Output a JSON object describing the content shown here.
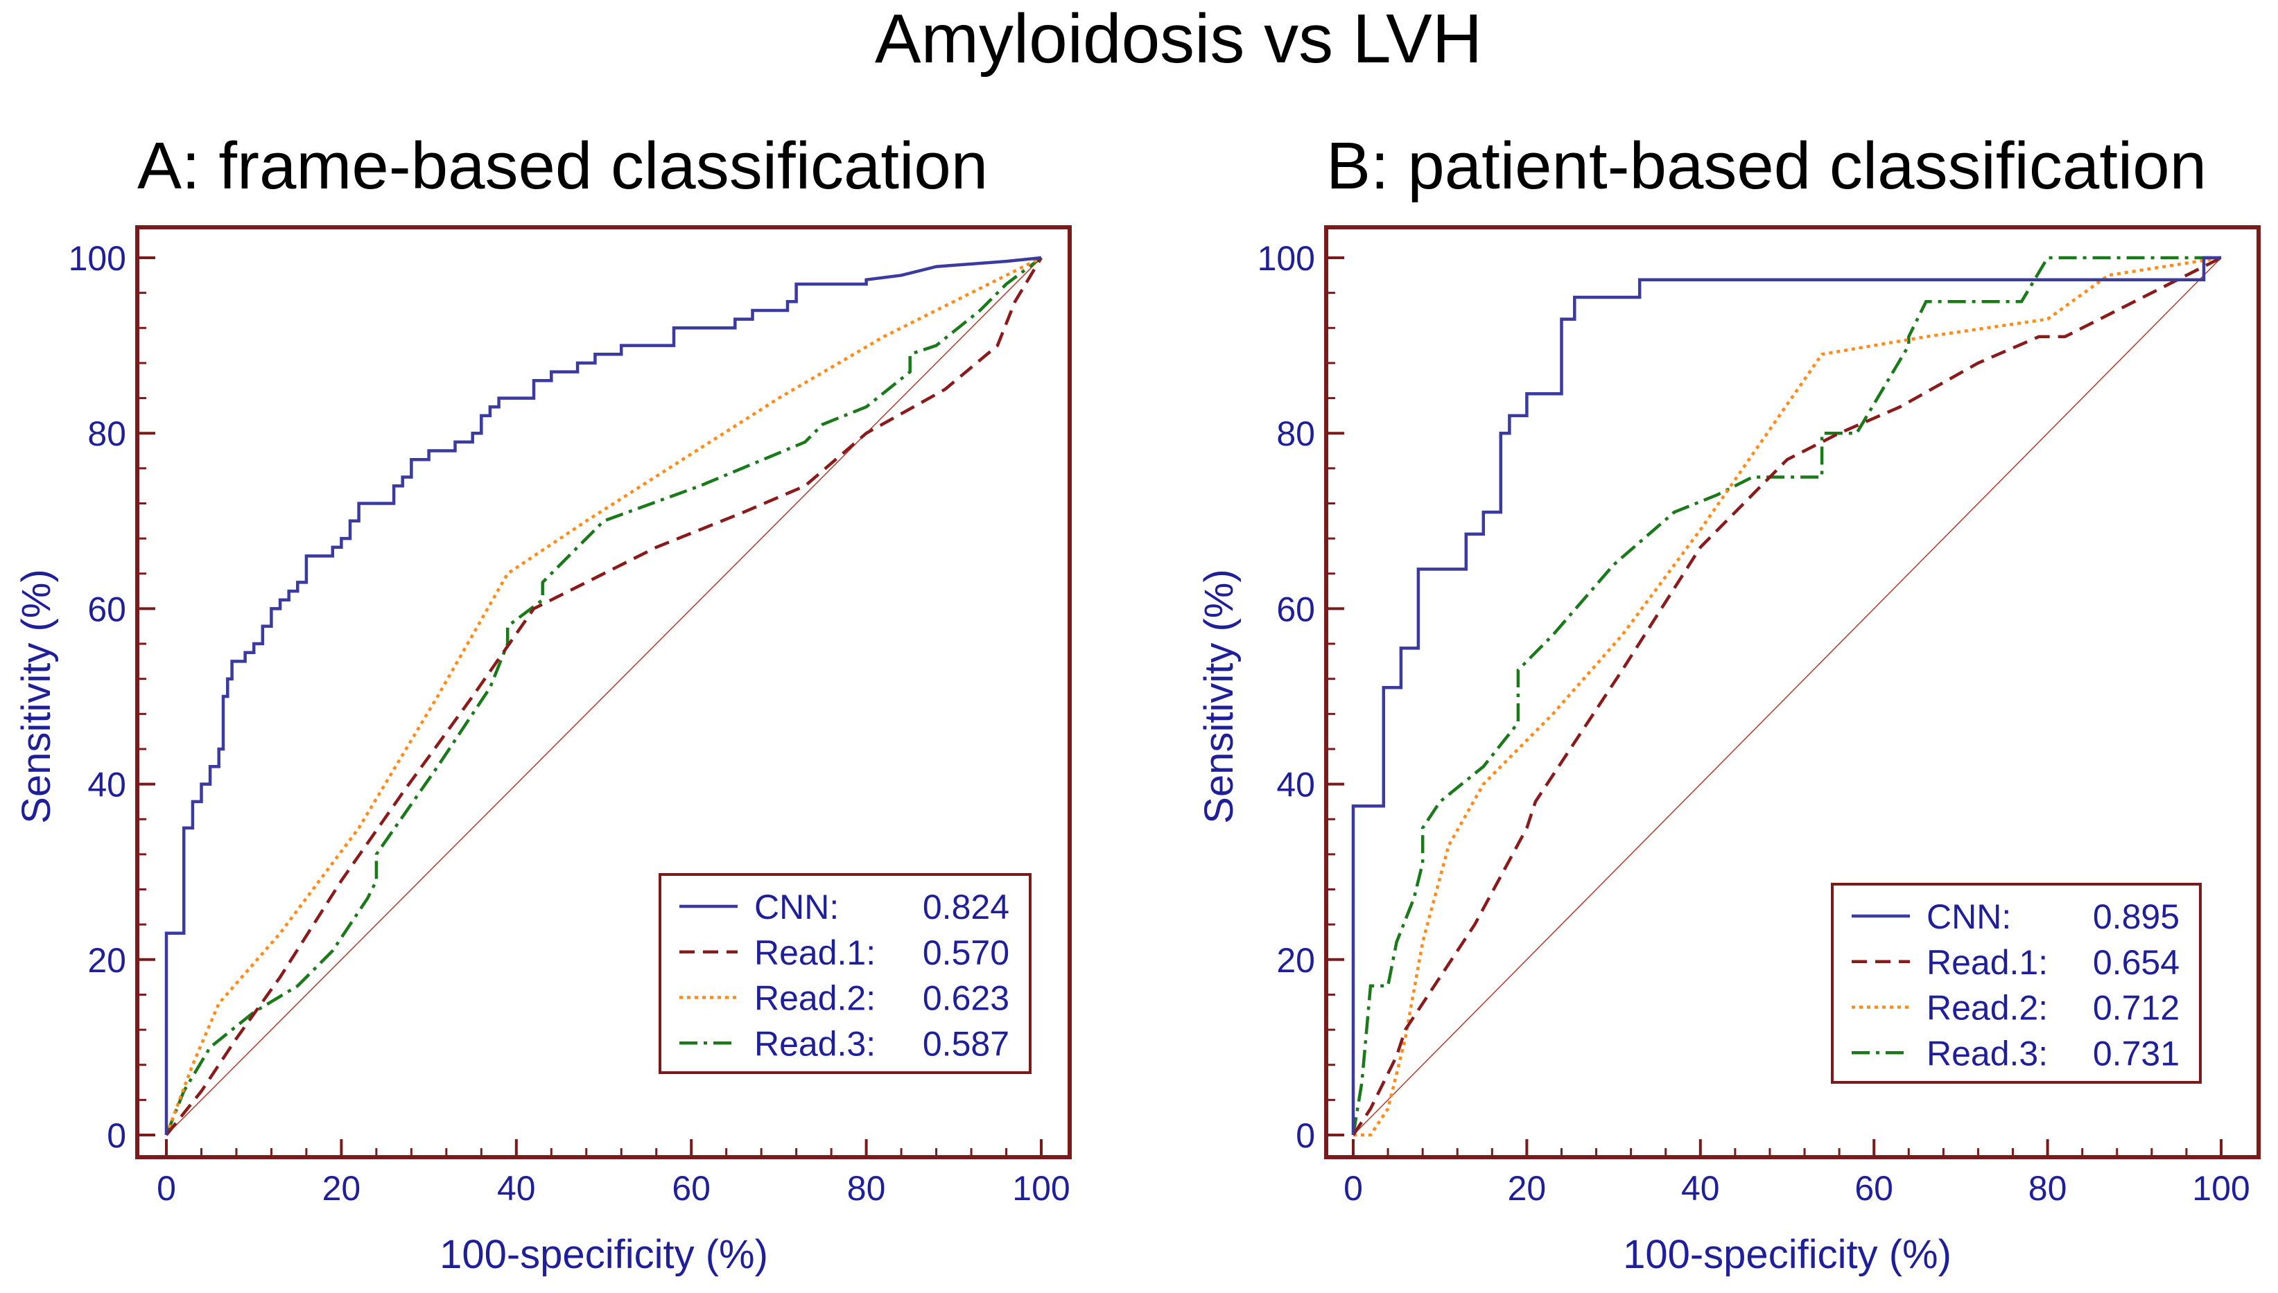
{
  "figure_title": "Amyloidosis vs LVH",
  "chart_data": [
    {
      "type": "line",
      "title": "A: frame-based classification",
      "xlabel": "100-specificity (%)",
      "ylabel": "Sensitivity (%)",
      "xlim": [
        0,
        100
      ],
      "ylim": [
        0,
        100
      ],
      "xticks": [
        "0",
        "20",
        "40",
        "60",
        "80",
        "100"
      ],
      "yticks": [
        "0",
        "20",
        "40",
        "60",
        "80",
        "100"
      ],
      "legend_position": "bottom-right",
      "grid": false,
      "series": [
        {
          "name": "CNN:",
          "auc": "0.824",
          "color": "#3a3aa0",
          "style": "solid",
          "points": [
            [
              0,
              0
            ],
            [
              0,
              23
            ],
            [
              2,
              23
            ],
            [
              2,
              35
            ],
            [
              3,
              35
            ],
            [
              3,
              38
            ],
            [
              4,
              38
            ],
            [
              4,
              40
            ],
            [
              5,
              40
            ],
            [
              5,
              42
            ],
            [
              6,
              42
            ],
            [
              6,
              44
            ],
            [
              6.5,
              44
            ],
            [
              6.5,
              50
            ],
            [
              7,
              50
            ],
            [
              7,
              52
            ],
            [
              7.5,
              52
            ],
            [
              7.5,
              54
            ],
            [
              9,
              54
            ],
            [
              9,
              55
            ],
            [
              10,
              55
            ],
            [
              10,
              56
            ],
            [
              11,
              56
            ],
            [
              11,
              58
            ],
            [
              12,
              58
            ],
            [
              12,
              60
            ],
            [
              13,
              60
            ],
            [
              13,
              61
            ],
            [
              14,
              61
            ],
            [
              14,
              62
            ],
            [
              15,
              62
            ],
            [
              15,
              63
            ],
            [
              16,
              63
            ],
            [
              16,
              66
            ],
            [
              19,
              66
            ],
            [
              19,
              67
            ],
            [
              20,
              67
            ],
            [
              20,
              68
            ],
            [
              21,
              68
            ],
            [
              21,
              70
            ],
            [
              22,
              70
            ],
            [
              22,
              72
            ],
            [
              26,
              72
            ],
            [
              26,
              74
            ],
            [
              27,
              74
            ],
            [
              27,
              75
            ],
            [
              28,
              75
            ],
            [
              28,
              77
            ],
            [
              30,
              77
            ],
            [
              30,
              78
            ],
            [
              33,
              78
            ],
            [
              33,
              79
            ],
            [
              35,
              79
            ],
            [
              35,
              80
            ],
            [
              36,
              80
            ],
            [
              36,
              82
            ],
            [
              37,
              82
            ],
            [
              37,
              83
            ],
            [
              38,
              83
            ],
            [
              38,
              84
            ],
            [
              42,
              84
            ],
            [
              42,
              86
            ],
            [
              44,
              86
            ],
            [
              44,
              87
            ],
            [
              47,
              87
            ],
            [
              47,
              88
            ],
            [
              49,
              88
            ],
            [
              49,
              89
            ],
            [
              52,
              89
            ],
            [
              52,
              90
            ],
            [
              58,
              90
            ],
            [
              58,
              92
            ],
            [
              65,
              92
            ],
            [
              65,
              93
            ],
            [
              67,
              93
            ],
            [
              67,
              94
            ],
            [
              71,
              94
            ],
            [
              71,
              95
            ],
            [
              72,
              95
            ],
            [
              72,
              97
            ],
            [
              80,
              97
            ],
            [
              80,
              97.5
            ],
            [
              84,
              98
            ],
            [
              88,
              99
            ],
            [
              96,
              99.6
            ],
            [
              100,
              100
            ]
          ]
        },
        {
          "name": "Read.1:",
          "auc": "0.570",
          "color": "#8b1a1a",
          "style": "dashed",
          "points": [
            [
              0,
              0
            ],
            [
              4,
              5
            ],
            [
              8,
              11
            ],
            [
              13,
              18
            ],
            [
              20,
              29
            ],
            [
              27,
              39
            ],
            [
              35,
              50
            ],
            [
              42,
              60
            ],
            [
              46,
              62
            ],
            [
              56,
              67
            ],
            [
              66,
              71
            ],
            [
              73,
              74
            ],
            [
              80,
              80
            ],
            [
              89,
              85
            ],
            [
              95,
              90
            ],
            [
              97,
              95
            ],
            [
              100,
              100
            ]
          ]
        },
        {
          "name": "Read.2:",
          "auc": "0.623",
          "color": "#ff8c1a",
          "style": "dotted",
          "points": [
            [
              0,
              0
            ],
            [
              3,
              8
            ],
            [
              6,
              15
            ],
            [
              13,
              23
            ],
            [
              22,
              35
            ],
            [
              31,
              50
            ],
            [
              39,
              64
            ],
            [
              48,
              70
            ],
            [
              59,
              77
            ],
            [
              70,
              84
            ],
            [
              82,
              91
            ],
            [
              92,
              96
            ],
            [
              100,
              100
            ]
          ]
        },
        {
          "name": "Read.3:",
          "auc": "0.587",
          "color": "#1a7a1a",
          "style": "dashdot",
          "points": [
            [
              0,
              0
            ],
            [
              2,
              5
            ],
            [
              5,
              10
            ],
            [
              10,
              14
            ],
            [
              15,
              17
            ],
            [
              19,
              21
            ],
            [
              23,
              27
            ],
            [
              24,
              29
            ],
            [
              24,
              32
            ],
            [
              31,
              42
            ],
            [
              37,
              51
            ],
            [
              39,
              56
            ],
            [
              39,
              58
            ],
            [
              43,
              61
            ],
            [
              43,
              63
            ],
            [
              46,
              66
            ],
            [
              50,
              70
            ],
            [
              61,
              74
            ],
            [
              73,
              79
            ],
            [
              75,
              81
            ],
            [
              80,
              83
            ],
            [
              85,
              87
            ],
            [
              85,
              89
            ],
            [
              88,
              90
            ],
            [
              93,
              94
            ],
            [
              96,
              97
            ],
            [
              100,
              100
            ]
          ]
        }
      ]
    },
    {
      "type": "line",
      "title": "B: patient-based classification",
      "xlabel": "100-specificity (%)",
      "ylabel": "Sensitivity (%)",
      "xlim": [
        0,
        100
      ],
      "ylim": [
        0,
        100
      ],
      "xticks": [
        "0",
        "20",
        "40",
        "60",
        "80",
        "100"
      ],
      "yticks": [
        "0",
        "20",
        "40",
        "60",
        "80",
        "100"
      ],
      "legend_position": "bottom-right",
      "grid": false,
      "series": [
        {
          "name": "CNN:",
          "auc": "0.895",
          "color": "#3a3aa0",
          "style": "solid",
          "points": [
            [
              0,
              0
            ],
            [
              0,
              37.5
            ],
            [
              3.5,
              37.5
            ],
            [
              3.5,
              51
            ],
            [
              5.5,
              51
            ],
            [
              5.5,
              55.5
            ],
            [
              7.5,
              55.5
            ],
            [
              7.5,
              64.5
            ],
            [
              13,
              64.5
            ],
            [
              13,
              68.5
            ],
            [
              15,
              68.5
            ],
            [
              15,
              71
            ],
            [
              17,
              71
            ],
            [
              17,
              80
            ],
            [
              18,
              80
            ],
            [
              18,
              82
            ],
            [
              20,
              82
            ],
            [
              20,
              84.5
            ],
            [
              24,
              84.5
            ],
            [
              24,
              93
            ],
            [
              25.5,
              93
            ],
            [
              25.5,
              95.5
            ],
            [
              33,
              95.5
            ],
            [
              33,
              97.5
            ],
            [
              98,
              97.5
            ],
            [
              98,
              100
            ],
            [
              100,
              100
            ]
          ]
        },
        {
          "name": "Read.1:",
          "auc": "0.654",
          "color": "#8b1a1a",
          "style": "dashed",
          "points": [
            [
              0,
              0
            ],
            [
              2,
              3
            ],
            [
              5,
              9
            ],
            [
              6,
              12
            ],
            [
              8,
              15
            ],
            [
              14,
              24
            ],
            [
              20,
              35
            ],
            [
              21,
              38
            ],
            [
              31,
              53
            ],
            [
              40,
              67
            ],
            [
              50,
              77
            ],
            [
              56,
              80
            ],
            [
              63,
              83
            ],
            [
              72,
              88
            ],
            [
              79,
              91
            ],
            [
              82,
              91
            ],
            [
              92,
              96
            ],
            [
              100,
              100
            ]
          ]
        },
        {
          "name": "Read.2:",
          "auc": "0.712",
          "color": "#ff8c1a",
          "style": "dotted",
          "points": [
            [
              0,
              0
            ],
            [
              2,
              0
            ],
            [
              4,
              3
            ],
            [
              6,
              11
            ],
            [
              8,
              22
            ],
            [
              11,
              33
            ],
            [
              15,
              40
            ],
            [
              23,
              48
            ],
            [
              31,
              57
            ],
            [
              40,
              69
            ],
            [
              47,
              79
            ],
            [
              54,
              89
            ],
            [
              66,
              91
            ],
            [
              80,
              93
            ],
            [
              87,
              98
            ],
            [
              100,
              100
            ]
          ]
        },
        {
          "name": "Read.3:",
          "auc": "0.731",
          "color": "#1a7a1a",
          "style": "dashdot",
          "points": [
            [
              0,
              0
            ],
            [
              1,
              6
            ],
            [
              2,
              17
            ],
            [
              4,
              17
            ],
            [
              5,
              22
            ],
            [
              7,
              27
            ],
            [
              8,
              31
            ],
            [
              8,
              35
            ],
            [
              10,
              38
            ],
            [
              15,
              42
            ],
            [
              19,
              47
            ],
            [
              19,
              53
            ],
            [
              23,
              57
            ],
            [
              30,
              65
            ],
            [
              37,
              71
            ],
            [
              42,
              73
            ],
            [
              46,
              75
            ],
            [
              54,
              75
            ],
            [
              54,
              80
            ],
            [
              58,
              80
            ],
            [
              64,
              90
            ],
            [
              64,
              91
            ],
            [
              66,
              95
            ],
            [
              74,
              95
            ],
            [
              77,
              95
            ],
            [
              80,
              100
            ],
            [
              100,
              100
            ]
          ]
        }
      ]
    }
  ]
}
